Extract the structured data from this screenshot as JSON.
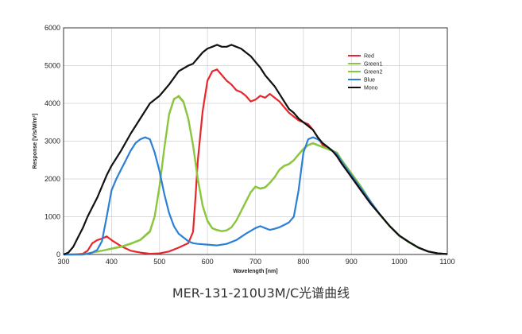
{
  "caption": "MER-131-210U3M/C光谱曲线",
  "chart_data": {
    "type": "line",
    "xlabel": "Wavelength [nm]",
    "ylabel": "Response [V/s/W/m²]",
    "xlim": [
      300,
      1100
    ],
    "ylim": [
      0,
      6000
    ],
    "xticks": [
      300,
      400,
      500,
      600,
      700,
      800,
      900,
      1000,
      1100
    ],
    "yticks": [
      0,
      1000,
      2000,
      3000,
      4000,
      5000,
      6000
    ],
    "grid": true,
    "legend_position": "top-right",
    "series": [
      {
        "name": "Red",
        "color": "#e8262a",
        "x": [
          300,
          320,
          340,
          350,
          360,
          370,
          380,
          390,
          400,
          420,
          440,
          460,
          480,
          500,
          520,
          540,
          560,
          570,
          575,
          580,
          590,
          600,
          610,
          620,
          630,
          640,
          650,
          660,
          670,
          680,
          690,
          700,
          710,
          720,
          730,
          740,
          750,
          760,
          770,
          780,
          790,
          800,
          810,
          820,
          830,
          840,
          850,
          860,
          870,
          880,
          900,
          920,
          940,
          960,
          980,
          1000,
          1020,
          1040,
          1060,
          1080,
          1100
        ],
        "y": [
          0,
          0,
          20,
          100,
          300,
          380,
          420,
          480,
          380,
          220,
          100,
          50,
          20,
          30,
          80,
          180,
          300,
          600,
          1500,
          2500,
          3800,
          4600,
          4850,
          4900,
          4750,
          4600,
          4500,
          4350,
          4300,
          4200,
          4050,
          4100,
          4200,
          4150,
          4250,
          4150,
          4050,
          3900,
          3750,
          3650,
          3550,
          3500,
          3450,
          3300,
          3100,
          2900,
          2800,
          2750,
          2650,
          2450,
          2050,
          1700,
          1350,
          1050,
          750,
          500,
          330,
          180,
          80,
          30,
          10
        ]
      },
      {
        "name": "Green1",
        "color": "#8cc63f",
        "x": [
          300,
          340,
          360,
          380,
          400,
          420,
          440,
          460,
          480,
          490,
          500,
          510,
          520,
          530,
          540,
          550,
          560,
          570,
          580,
          590,
          600,
          610,
          620,
          630,
          640,
          650,
          660,
          670,
          680,
          690,
          700,
          710,
          720,
          730,
          740,
          750,
          760,
          770,
          780,
          790,
          800,
          810,
          820,
          830,
          840,
          850,
          860,
          870,
          880,
          900,
          920,
          940,
          960,
          980,
          1000,
          1020,
          1040,
          1060,
          1080,
          1100
        ],
        "y": [
          0,
          0,
          50,
          100,
          150,
          200,
          280,
          380,
          600,
          1000,
          1800,
          2800,
          3700,
          4100,
          4200,
          4050,
          3600,
          2900,
          2000,
          1300,
          900,
          700,
          650,
          620,
          640,
          720,
          900,
          1150,
          1400,
          1650,
          1800,
          1750,
          1780,
          1900,
          2050,
          2250,
          2350,
          2400,
          2500,
          2650,
          2800,
          2900,
          2950,
          2900,
          2850,
          2800,
          2750,
          2700,
          2500,
          2150,
          1800,
          1400,
          1050,
          750,
          500,
          330,
          180,
          80,
          30,
          10
        ]
      },
      {
        "name": "Green2",
        "color": "#8cc63f",
        "x": [
          300,
          340,
          360,
          380,
          400,
          420,
          440,
          460,
          480,
          490,
          500,
          510,
          520,
          530,
          540,
          550,
          560,
          570,
          580,
          590,
          600,
          610,
          620,
          630,
          640,
          650,
          660,
          670,
          680,
          690,
          700,
          710,
          720,
          730,
          740,
          750,
          760,
          770,
          780,
          790,
          800,
          810,
          820,
          830,
          840,
          850,
          860,
          870,
          880,
          900,
          920,
          940,
          960,
          980,
          1000,
          1020,
          1040,
          1060,
          1080,
          1100
        ],
        "y": [
          0,
          0,
          50,
          100,
          160,
          210,
          290,
          390,
          620,
          1020,
          1820,
          2820,
          3720,
          4120,
          4180,
          4030,
          3580,
          2880,
          1980,
          1280,
          880,
          690,
          640,
          615,
          635,
          715,
          895,
          1140,
          1390,
          1640,
          1790,
          1740,
          1770,
          1890,
          2040,
          2240,
          2340,
          2390,
          2490,
          2640,
          2790,
          2890,
          2940,
          2890,
          2840,
          2790,
          2740,
          2690,
          2490,
          2140,
          1790,
          1390,
          1040,
          740,
          490,
          320,
          170,
          75,
          28,
          10
        ]
      },
      {
        "name": "Blue",
        "color": "#2c7fd6",
        "x": [
          300,
          340,
          350,
          360,
          370,
          380,
          390,
          400,
          410,
          420,
          430,
          440,
          450,
          460,
          470,
          480,
          490,
          500,
          510,
          520,
          530,
          540,
          550,
          560,
          570,
          580,
          600,
          620,
          640,
          660,
          680,
          700,
          710,
          720,
          730,
          740,
          750,
          760,
          770,
          780,
          790,
          800,
          810,
          820,
          830,
          840,
          850,
          860,
          870,
          880,
          900,
          920,
          940,
          960,
          980,
          1000,
          1020,
          1040,
          1060,
          1080,
          1100
        ],
        "y": [
          0,
          0,
          20,
          50,
          120,
          350,
          1000,
          1700,
          2000,
          2250,
          2500,
          2750,
          2950,
          3050,
          3100,
          3050,
          2700,
          2200,
          1600,
          1100,
          750,
          550,
          450,
          350,
          300,
          280,
          260,
          240,
          280,
          380,
          550,
          700,
          750,
          700,
          650,
          680,
          720,
          780,
          850,
          1000,
          1700,
          2700,
          3050,
          3100,
          3050,
          2950,
          2850,
          2750,
          2650,
          2450,
          2100,
          1750,
          1400,
          1050,
          750,
          500,
          330,
          180,
          80,
          30,
          10
        ]
      },
      {
        "name": "Mono",
        "color": "#111111",
        "x": [
          300,
          310,
          320,
          330,
          340,
          350,
          360,
          370,
          380,
          390,
          400,
          420,
          440,
          460,
          480,
          500,
          520,
          540,
          560,
          570,
          580,
          590,
          600,
          610,
          620,
          630,
          640,
          650,
          660,
          670,
          680,
          690,
          700,
          710,
          720,
          730,
          740,
          750,
          760,
          770,
          780,
          790,
          800,
          810,
          820,
          830,
          840,
          850,
          860,
          870,
          880,
          900,
          920,
          940,
          960,
          980,
          1000,
          1020,
          1040,
          1060,
          1080,
          1100
        ],
        "y": [
          0,
          50,
          200,
          450,
          700,
          1000,
          1250,
          1500,
          1800,
          2100,
          2350,
          2750,
          3200,
          3600,
          4000,
          4200,
          4500,
          4850,
          5000,
          5050,
          5200,
          5350,
          5450,
          5500,
          5550,
          5500,
          5500,
          5550,
          5500,
          5450,
          5350,
          5250,
          5100,
          4950,
          4750,
          4600,
          4450,
          4250,
          4050,
          3850,
          3750,
          3600,
          3500,
          3400,
          3300,
          3100,
          2950,
          2850,
          2750,
          2600,
          2400,
          2050,
          1700,
          1350,
          1050,
          750,
          500,
          330,
          180,
          80,
          30,
          10
        ]
      }
    ]
  }
}
